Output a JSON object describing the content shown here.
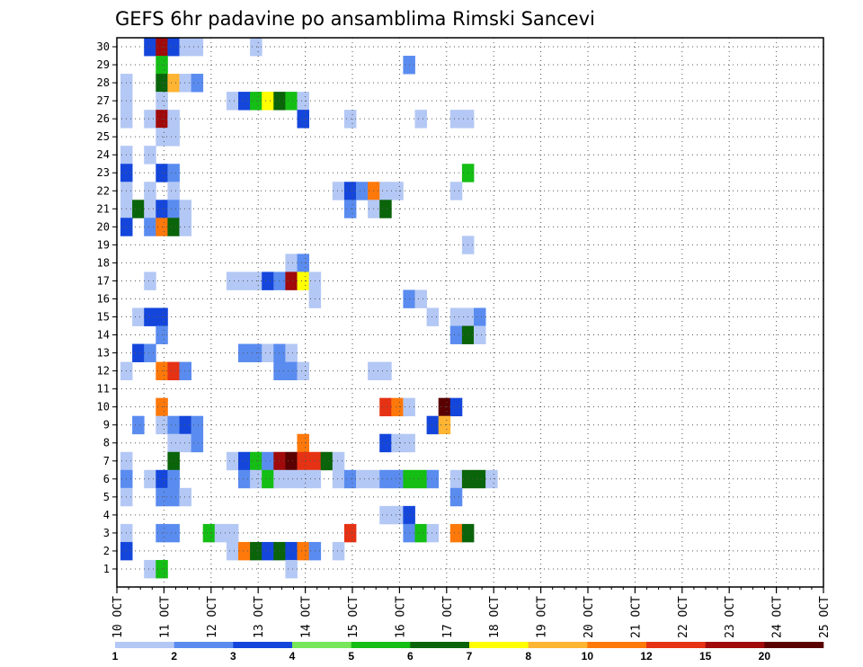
{
  "chart_data": {
    "type": "heatmap",
    "title": "GEFS 6hr padavine po ansamblima Rimski Sancevi",
    "xlabel": "",
    "ylabel": "",
    "x_ticks": [
      "10 OCT",
      "11 OCT",
      "12 OCT",
      "13 OCT",
      "14 OCT",
      "15 OCT",
      "16 OCT",
      "17 OCT",
      "18 OCT",
      "19 OCT",
      "20 OCT",
      "21 OCT",
      "22 OCT",
      "23 OCT",
      "24 OCT",
      "25 OCT"
    ],
    "xlim_steps": [
      0,
      60
    ],
    "ylim": [
      0,
      30
    ],
    "y_ticks": [
      1,
      2,
      3,
      4,
      5,
      6,
      7,
      8,
      9,
      10,
      11,
      12,
      13,
      14,
      15,
      16,
      17,
      18,
      19,
      20,
      21,
      22,
      23,
      24,
      25,
      26,
      27,
      28,
      29,
      30
    ],
    "grid": true,
    "colorbar": {
      "bounds": [
        1,
        2,
        3,
        4,
        5,
        6,
        7,
        8,
        10,
        12,
        15,
        20
      ],
      "labels": [
        "1",
        "2",
        "3",
        "4",
        "5",
        "6",
        "7",
        "8",
        "10",
        "12",
        "15",
        "20"
      ],
      "colors": [
        "#b4c8f5",
        "#5a8cf0",
        "#1446dc",
        "#78e65a",
        "#14be14",
        "#0a640a",
        "#ffff00",
        "#ffb432",
        "#ff780a",
        "#e63214",
        "#a00a0a",
        "#5a0000"
      ]
    },
    "cells": [
      [
        30,
        2,
        3
      ],
      [
        30,
        3,
        15
      ],
      [
        30,
        4,
        3
      ],
      [
        30,
        5,
        1
      ],
      [
        30,
        6,
        1
      ],
      [
        30,
        11,
        1
      ],
      [
        29,
        3,
        5
      ],
      [
        29,
        24,
        2
      ],
      [
        28,
        0,
        1
      ],
      [
        28,
        3,
        6
      ],
      [
        28,
        4,
        8
      ],
      [
        28,
        5,
        1
      ],
      [
        28,
        6,
        2
      ],
      [
        27,
        0,
        1
      ],
      [
        27,
        3,
        1
      ],
      [
        27,
        9,
        1
      ],
      [
        27,
        10,
        3
      ],
      [
        27,
        11,
        5
      ],
      [
        27,
        12,
        7
      ],
      [
        27,
        13,
        6
      ],
      [
        27,
        14,
        5
      ],
      [
        27,
        15,
        1
      ],
      [
        26,
        0,
        1
      ],
      [
        26,
        2,
        1
      ],
      [
        26,
        3,
        15
      ],
      [
        26,
        4,
        1
      ],
      [
        26,
        15,
        3
      ],
      [
        26,
        19,
        1
      ],
      [
        26,
        25,
        1
      ],
      [
        26,
        28,
        1
      ],
      [
        26,
        29,
        1
      ],
      [
        25,
        3,
        1
      ],
      [
        25,
        4,
        1
      ],
      [
        24,
        0,
        1
      ],
      [
        24,
        2,
        1
      ],
      [
        23,
        0,
        3
      ],
      [
        23,
        3,
        3
      ],
      [
        23,
        4,
        2
      ],
      [
        23,
        29,
        5
      ],
      [
        22,
        0,
        1
      ],
      [
        22,
        2,
        1
      ],
      [
        22,
        4,
        1
      ],
      [
        22,
        18,
        1
      ],
      [
        22,
        19,
        3
      ],
      [
        22,
        20,
        2
      ],
      [
        22,
        21,
        10
      ],
      [
        22,
        22,
        1
      ],
      [
        22,
        23,
        1
      ],
      [
        22,
        28,
        1
      ],
      [
        21,
        0,
        1
      ],
      [
        21,
        1,
        6
      ],
      [
        21,
        2,
        1
      ],
      [
        21,
        3,
        3
      ],
      [
        21,
        4,
        2
      ],
      [
        21,
        5,
        1
      ],
      [
        21,
        19,
        2
      ],
      [
        21,
        21,
        1
      ],
      [
        21,
        22,
        6
      ],
      [
        20,
        0,
        3
      ],
      [
        20,
        2,
        2
      ],
      [
        20,
        3,
        10
      ],
      [
        20,
        4,
        6
      ],
      [
        20,
        5,
        1
      ],
      [
        19,
        29,
        1
      ],
      [
        18,
        14,
        1
      ],
      [
        18,
        15,
        2
      ],
      [
        17,
        2,
        1
      ],
      [
        17,
        9,
        1
      ],
      [
        17,
        10,
        1
      ],
      [
        17,
        11,
        1
      ],
      [
        17,
        12,
        3
      ],
      [
        17,
        13,
        2
      ],
      [
        17,
        14,
        15
      ],
      [
        17,
        15,
        7
      ],
      [
        17,
        16,
        1
      ],
      [
        16,
        16,
        1
      ],
      [
        16,
        24,
        2
      ],
      [
        16,
        25,
        1
      ],
      [
        15,
        1,
        1
      ],
      [
        15,
        2,
        3
      ],
      [
        15,
        3,
        3
      ],
      [
        15,
        26,
        1
      ],
      [
        15,
        28,
        1
      ],
      [
        15,
        29,
        1
      ],
      [
        15,
        30,
        2
      ],
      [
        14,
        3,
        2
      ],
      [
        14,
        28,
        2
      ],
      [
        14,
        29,
        6
      ],
      [
        14,
        30,
        1
      ],
      [
        13,
        1,
        3
      ],
      [
        13,
        2,
        2
      ],
      [
        13,
        10,
        2
      ],
      [
        13,
        11,
        2
      ],
      [
        13,
        12,
        1
      ],
      [
        13,
        13,
        2
      ],
      [
        13,
        14,
        1
      ],
      [
        12,
        0,
        1
      ],
      [
        12,
        3,
        10
      ],
      [
        12,
        4,
        12
      ],
      [
        12,
        5,
        2
      ],
      [
        12,
        13,
        2
      ],
      [
        12,
        14,
        2
      ],
      [
        12,
        15,
        1
      ],
      [
        12,
        21,
        1
      ],
      [
        12,
        22,
        1
      ],
      [
        10,
        3,
        10
      ],
      [
        10,
        22,
        12
      ],
      [
        10,
        23,
        10
      ],
      [
        10,
        24,
        1
      ],
      [
        10,
        27,
        20
      ],
      [
        10,
        28,
        3
      ],
      [
        9,
        1,
        2
      ],
      [
        9,
        3,
        1
      ],
      [
        9,
        4,
        2
      ],
      [
        9,
        5,
        3
      ],
      [
        9,
        6,
        2
      ],
      [
        9,
        26,
        3
      ],
      [
        9,
        27,
        8
      ],
      [
        8,
        4,
        1
      ],
      [
        8,
        5,
        1
      ],
      [
        8,
        6,
        2
      ],
      [
        8,
        15,
        10
      ],
      [
        8,
        22,
        3
      ],
      [
        8,
        23,
        1
      ],
      [
        8,
        24,
        1
      ],
      [
        7,
        0,
        1
      ],
      [
        7,
        4,
        6
      ],
      [
        7,
        9,
        1
      ],
      [
        7,
        10,
        3
      ],
      [
        7,
        11,
        5
      ],
      [
        7,
        12,
        2
      ],
      [
        7,
        13,
        15
      ],
      [
        7,
        14,
        20
      ],
      [
        7,
        15,
        12
      ],
      [
        7,
        16,
        12
      ],
      [
        7,
        17,
        6
      ],
      [
        7,
        18,
        1
      ],
      [
        6,
        0,
        2
      ],
      [
        6,
        2,
        1
      ],
      [
        6,
        3,
        3
      ],
      [
        6,
        4,
        2
      ],
      [
        6,
        10,
        2
      ],
      [
        6,
        11,
        1
      ],
      [
        6,
        12,
        5
      ],
      [
        6,
        13,
        1
      ],
      [
        6,
        14,
        1
      ],
      [
        6,
        15,
        1
      ],
      [
        6,
        16,
        1
      ],
      [
        6,
        18,
        1
      ],
      [
        6,
        19,
        2
      ],
      [
        6,
        20,
        1
      ],
      [
        6,
        21,
        1
      ],
      [
        6,
        22,
        2
      ],
      [
        6,
        23,
        2
      ],
      [
        6,
        24,
        5
      ],
      [
        6,
        25,
        5
      ],
      [
        6,
        26,
        2
      ],
      [
        6,
        28,
        1
      ],
      [
        6,
        29,
        6
      ],
      [
        6,
        30,
        6
      ],
      [
        6,
        31,
        1
      ],
      [
        5,
        0,
        1
      ],
      [
        5,
        3,
        2
      ],
      [
        5,
        4,
        2
      ],
      [
        5,
        5,
        1
      ],
      [
        5,
        28,
        2
      ],
      [
        4,
        22,
        1
      ],
      [
        4,
        23,
        1
      ],
      [
        4,
        24,
        3
      ],
      [
        3,
        0,
        1
      ],
      [
        3,
        3,
        2
      ],
      [
        3,
        4,
        2
      ],
      [
        3,
        7,
        5
      ],
      [
        3,
        8,
        1
      ],
      [
        3,
        9,
        1
      ],
      [
        3,
        19,
        12
      ],
      [
        3,
        24,
        2
      ],
      [
        3,
        25,
        5
      ],
      [
        3,
        26,
        1
      ],
      [
        3,
        28,
        10
      ],
      [
        3,
        29,
        6
      ],
      [
        2,
        0,
        3
      ],
      [
        2,
        9,
        1
      ],
      [
        2,
        10,
        10
      ],
      [
        2,
        11,
        6
      ],
      [
        2,
        12,
        3
      ],
      [
        2,
        13,
        6
      ],
      [
        2,
        14,
        3
      ],
      [
        2,
        15,
        10
      ],
      [
        2,
        16,
        2
      ],
      [
        2,
        18,
        1
      ],
      [
        1,
        2,
        1
      ],
      [
        1,
        3,
        5
      ],
      [
        1,
        14,
        1
      ]
    ]
  }
}
